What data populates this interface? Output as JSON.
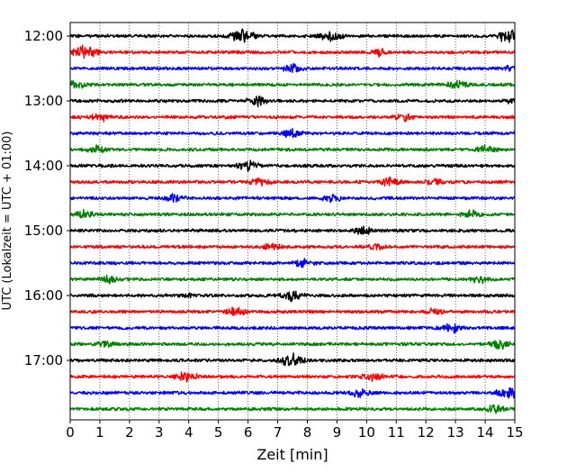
{
  "chart_data": {
    "type": "line",
    "title": "",
    "xlabel": "Zeit  [min]",
    "ylabel": "UTC (Lokalzeit = UTC + 01:00)",
    "xlim": [
      0,
      15
    ],
    "x_ticks": [
      "0",
      "1",
      "2",
      "3",
      "4",
      "5",
      "6",
      "7",
      "8",
      "9",
      "10",
      "11",
      "12",
      "13",
      "14",
      "15"
    ],
    "y_tick_labels": [
      "12:00",
      "13:00",
      "14:00",
      "15:00",
      "16:00",
      "17:00"
    ],
    "y_ticks_hours": [
      12,
      13,
      14,
      15,
      16,
      17
    ],
    "start_hour": 12.0,
    "trace_interval_min": 15,
    "grid": {
      "x": true,
      "style": "dotted"
    },
    "colors": [
      "#000000",
      "#ff0000",
      "#0000ff",
      "#008000"
    ],
    "traces": [
      {
        "start": "12:00",
        "color": "#000000",
        "events": [
          [
            5.8,
            0.6
          ],
          [
            8.8,
            0.45
          ],
          [
            14.9,
            0.7
          ]
        ]
      },
      {
        "start": "12:15",
        "color": "#ff0000",
        "events": [
          [
            0.5,
            0.6
          ],
          [
            10.4,
            0.3
          ]
        ]
      },
      {
        "start": "12:30",
        "color": "#0000ff",
        "events": [
          [
            7.5,
            0.4
          ],
          [
            14.9,
            0.25
          ]
        ]
      },
      {
        "start": "12:45",
        "color": "#008000",
        "events": [
          [
            0.2,
            0.45
          ],
          [
            13.1,
            0.4
          ]
        ]
      },
      {
        "start": "13:00",
        "color": "#000000",
        "events": [
          [
            6.3,
            0.45
          ],
          [
            14.8,
            0.2
          ]
        ]
      },
      {
        "start": "13:15",
        "color": "#ff0000",
        "events": [
          [
            1.0,
            0.4
          ],
          [
            11.3,
            0.35
          ]
        ]
      },
      {
        "start": "13:30",
        "color": "#0000ff",
        "events": [
          [
            7.5,
            0.4
          ]
        ]
      },
      {
        "start": "13:45",
        "color": "#008000",
        "events": [
          [
            0.9,
            0.35
          ],
          [
            14.0,
            0.35
          ]
        ]
      },
      {
        "start": "14:00",
        "color": "#000000",
        "events": [
          [
            6.0,
            0.45
          ]
        ]
      },
      {
        "start": "14:15",
        "color": "#ff0000",
        "events": [
          [
            6.4,
            0.4
          ],
          [
            10.8,
            0.4
          ],
          [
            12.3,
            0.3
          ]
        ]
      },
      {
        "start": "14:30",
        "color": "#0000ff",
        "events": [
          [
            3.5,
            0.35
          ],
          [
            8.8,
            0.35
          ]
        ]
      },
      {
        "start": "14:45",
        "color": "#008000",
        "events": [
          [
            0.5,
            0.35
          ],
          [
            13.5,
            0.35
          ]
        ]
      },
      {
        "start": "15:00",
        "color": "#000000",
        "events": [
          [
            9.9,
            0.4
          ]
        ]
      },
      {
        "start": "15:15",
        "color": "#ff0000",
        "events": [
          [
            6.8,
            0.35
          ],
          [
            10.3,
            0.25
          ]
        ]
      },
      {
        "start": "15:30",
        "color": "#0000ff",
        "events": [
          [
            7.9,
            0.4
          ]
        ]
      },
      {
        "start": "15:45",
        "color": "#008000",
        "events": [
          [
            1.3,
            0.35
          ],
          [
            13.8,
            0.35
          ]
        ]
      },
      {
        "start": "16:00",
        "color": "#000000",
        "events": [
          [
            7.5,
            0.45
          ],
          [
            4.0,
            0.15
          ]
        ]
      },
      {
        "start": "16:15",
        "color": "#ff0000",
        "events": [
          [
            5.6,
            0.4
          ],
          [
            12.3,
            0.3
          ]
        ]
      },
      {
        "start": "16:30",
        "color": "#0000ff",
        "events": [
          [
            12.8,
            0.45
          ]
        ]
      },
      {
        "start": "16:45",
        "color": "#008000",
        "events": [
          [
            1.2,
            0.3
          ],
          [
            14.5,
            0.4
          ]
        ]
      },
      {
        "start": "17:00",
        "color": "#000000",
        "events": [
          [
            7.5,
            0.6
          ]
        ]
      },
      {
        "start": "17:15",
        "color": "#ff0000",
        "events": [
          [
            3.9,
            0.45
          ],
          [
            10.2,
            0.35
          ]
        ]
      },
      {
        "start": "17:30",
        "color": "#0000ff",
        "events": [
          [
            9.8,
            0.4
          ],
          [
            14.8,
            0.55
          ]
        ]
      },
      {
        "start": "17:45",
        "color": "#008000",
        "events": [
          [
            14.3,
            0.4
          ]
        ]
      }
    ]
  }
}
